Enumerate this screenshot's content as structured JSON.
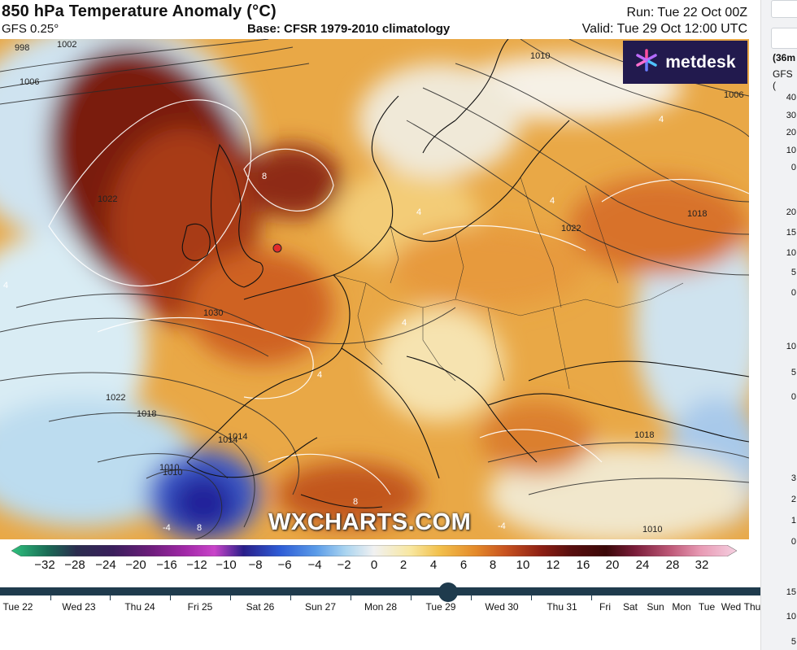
{
  "header": {
    "title": "850 hPa Temperature Anomaly (°C)",
    "model": "GFS 0.25°",
    "base": "Base: CFSR 1979-2010 climatology",
    "run": "Run: Tue 22 Oct 00Z",
    "valid": "Valid: Tue 29 Oct 12:00 UTC"
  },
  "logo": {
    "text": "metdesk"
  },
  "watermark": "WXCHARTS.COM",
  "map": {
    "isobar_labels": [
      "998",
      "1002",
      "1006",
      "1010",
      "1010",
      "1014",
      "1018",
      "1022",
      "1022",
      "1030",
      "1022",
      "1018",
      "1014",
      "1010",
      "1018",
      "1006",
      "1010"
    ],
    "anomaly_labels": [
      "4",
      "4",
      "4",
      "4",
      "4",
      "4",
      "-4",
      "-4",
      "8",
      "8",
      "8"
    ]
  },
  "colorbar": {
    "ticks": [
      "−32",
      "−28",
      "−24",
      "−20",
      "−16",
      "−12",
      "−10",
      "−8",
      "−6",
      "−4",
      "−2",
      "0",
      "2",
      "4",
      "6",
      "8",
      "10",
      "12",
      "16",
      "20",
      "24",
      "28",
      "32"
    ],
    "colors": [
      "#2ec27e",
      "#1a6b55",
      "#2b2d4f",
      "#3a1f5c",
      "#6b1d7a",
      "#a228a8",
      "#c944c9",
      "#2a1f8a",
      "#2e5cd6",
      "#5a9be8",
      "#a9d4f0",
      "#f1f1f1",
      "#f8e7a0",
      "#f2c04c",
      "#e48a2a",
      "#c95420",
      "#8e2014",
      "#5a0f0f",
      "#3b0808",
      "#7b1d3a",
      "#c05b7a",
      "#e89ab4",
      "#f5cfe0"
    ]
  },
  "timeline": {
    "days": [
      "Tue 22",
      "Wed 23",
      "Thu 24",
      "Fri 25",
      "Sat 26",
      "Sun 27",
      "Mon 28",
      "Tue 29",
      "Wed 30",
      "Thu 31",
      "Fri",
      "Sat",
      "Sun",
      "Mon",
      "Tue",
      "Wed",
      "Thu"
    ],
    "selected": "Tue 29"
  },
  "sidebar": {
    "label1": "(36m",
    "label2": "GFS (",
    "numbers": [
      "40",
      "30",
      "20",
      "10",
      "0",
      "20",
      "15",
      "10",
      "5",
      "0",
      "10",
      "5",
      "0",
      "3",
      "2",
      "1",
      "0",
      "15",
      "10",
      "5"
    ]
  }
}
